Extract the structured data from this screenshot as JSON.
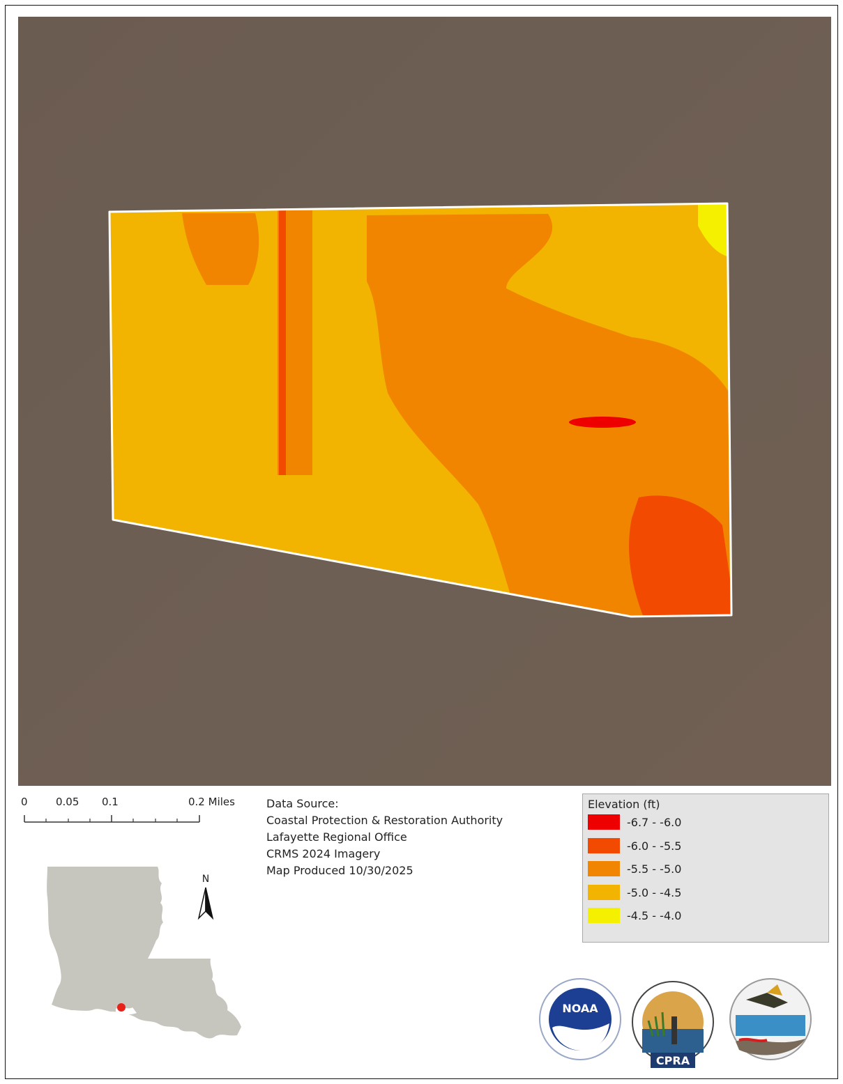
{
  "scale": {
    "ticks": [
      "0",
      "0.05",
      "0.1",
      "0.2 Miles"
    ]
  },
  "source": {
    "heading": "Data Source:",
    "lines": [
      "Coastal Protection & Restoration Authority",
      "Lafayette Regional Office",
      "CRMS 2024 Imagery",
      "Map Produced 10/30/2025"
    ]
  },
  "legend": {
    "title": "Elevation (ft)",
    "classes": [
      {
        "label": "-6.7 - -6.0",
        "color": "#ee0000"
      },
      {
        "label": "-6.0 - -5.5",
        "color": "#f24a00"
      },
      {
        "label": "-5.5 - -5.0",
        "color": "#f28500"
      },
      {
        "label": "-5.0 - -4.5",
        "color": "#f2b400"
      },
      {
        "label": "-4.5 - -4.0",
        "color": "#f5f000"
      }
    ]
  },
  "map": {
    "background_color": "#6c5d52",
    "boundary_color": "#ffffff"
  },
  "north_arrow": {
    "label": "N"
  },
  "inset": {
    "state_color": "#c6c6be",
    "site_marker_color": "#e8221a"
  },
  "logos": [
    {
      "name": "noaa-logo",
      "text": "NOAA"
    },
    {
      "name": "cpra-logo",
      "text": "CPRA"
    },
    {
      "name": "fisheries-logo",
      "text": ""
    }
  ]
}
